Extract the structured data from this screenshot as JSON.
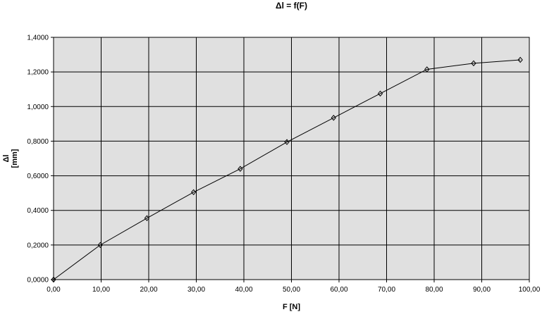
{
  "chart_data": {
    "type": "line",
    "title": "Δl = f(F)",
    "xlabel": "F [N]",
    "ylabel": "Δl",
    "ylabel_unit": "[mm]",
    "xlim": [
      0,
      100
    ],
    "ylim": [
      0,
      1.4
    ],
    "x_ticks": [
      "0,00",
      "10,00",
      "20,00",
      "30,00",
      "40,00",
      "50,00",
      "60,00",
      "70,00",
      "80,00",
      "90,00",
      "100,00"
    ],
    "y_ticks": [
      "0,0000",
      "0,2000",
      "0,4000",
      "0,6000",
      "0,8000",
      "1,0000",
      "1,2000",
      "1,4000"
    ],
    "grid": true,
    "background": "#e0e0e0",
    "line_color": "#000000",
    "series": [
      {
        "x": [
          0,
          9.81,
          19.62,
          29.43,
          39.24,
          49.05,
          58.86,
          68.67,
          78.48,
          88.29,
          98.1
        ],
        "y": [
          0.0,
          0.2,
          0.355,
          0.505,
          0.64,
          0.795,
          0.935,
          1.075,
          1.215,
          1.25,
          1.27
        ]
      }
    ]
  }
}
